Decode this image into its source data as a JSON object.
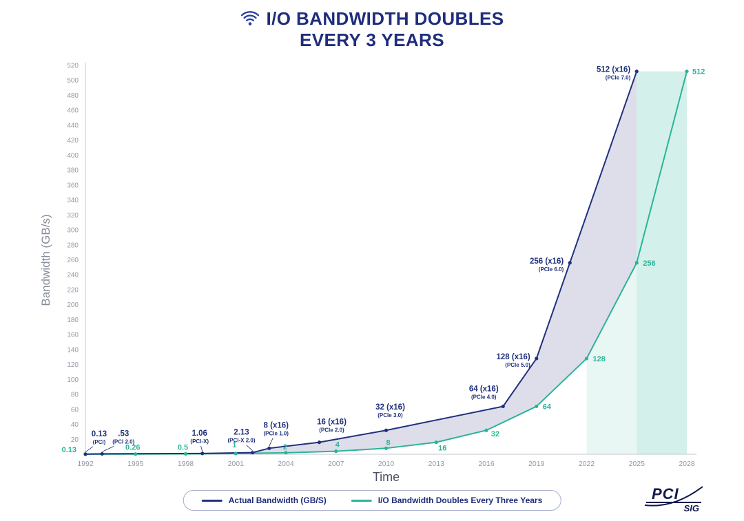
{
  "title": {
    "line1": "I/O BANDWIDTH DOUBLES",
    "line2": "EVERY 3 YEARS"
  },
  "colors": {
    "navy": "#21307C",
    "teal": "#2AB398",
    "navy_fill": "rgba(43,52,126,0.16)",
    "teal_fill": "rgba(42,179,152,0.20)",
    "teal_fill_light": "rgba(42,179,152,0.10)",
    "axis_line": "#c3c7d0",
    "tick_text": "#9399a5",
    "ylabel_color": "#868c9a",
    "xlabel_color": "#4a5068",
    "title_color": "#1f2d7b",
    "logo_color": "#12194d"
  },
  "chart_data": {
    "type": "line",
    "title": "I/O Bandwidth Doubles Every 3 Years",
    "xlabel": "Time",
    "ylabel": "Bandwidth (GB/s)",
    "xlim": [
      1992,
      2028
    ],
    "ylim": [
      0,
      520
    ],
    "x_ticks": [
      1992,
      1995,
      1998,
      2001,
      2004,
      2007,
      2010,
      2013,
      2016,
      2019,
      2022,
      2025,
      2028
    ],
    "y_ticks": [
      20,
      40,
      60,
      80,
      100,
      120,
      140,
      160,
      180,
      200,
      220,
      240,
      260,
      280,
      300,
      320,
      340,
      360,
      380,
      400,
      420,
      440,
      460,
      480,
      500,
      520
    ],
    "grid": false,
    "legend_position": "bottom",
    "series": [
      {
        "name": "Actual Bandwidth (GB/S)",
        "points": [
          {
            "year": 1992,
            "value": 0.13,
            "label": "0.13",
            "sublabel": "(PCI)"
          },
          {
            "year": 1993,
            "value": 0.53,
            "label": ".53",
            "sublabel": "(PCI 2.0)"
          },
          {
            "year": 1999,
            "value": 1.06,
            "label": "1.06",
            "sublabel": "(PCI-X)"
          },
          {
            "year": 2002,
            "value": 2.13,
            "label": "2.13",
            "sublabel": "(PCI-X 2.0)"
          },
          {
            "year": 2003,
            "value": 8,
            "label": "8 (x16)",
            "sublabel": "(PCIe 1.0)"
          },
          {
            "year": 2006,
            "value": 16,
            "label": "16 (x16)",
            "sublabel": "(PCIe 2.0)"
          },
          {
            "year": 2010,
            "value": 32,
            "label": "32 (x16)",
            "sublabel": "(PCIe 3.0)"
          },
          {
            "year": 2017,
            "value": 64,
            "label": "64 (x16)",
            "sublabel": "(PCIe 4.0)"
          },
          {
            "year": 2019,
            "value": 128,
            "label": "128 (x16)",
            "sublabel": "(PCIe 5.0)"
          },
          {
            "year": 2021,
            "value": 256,
            "label": "256 (x16)",
            "sublabel": "(PCIe 6.0)"
          },
          {
            "year": 2025,
            "value": 512,
            "label": "512 (x16)",
            "sublabel": "(PCIe 7.0)"
          }
        ]
      },
      {
        "name": "I/O Bandwidth Doubles Every Three Years",
        "points": [
          {
            "year": 1992,
            "value": 0.13,
            "label": "0.13"
          },
          {
            "year": 1995,
            "value": 0.26,
            "label": "0.26"
          },
          {
            "year": 1998,
            "value": 0.5,
            "label": "0.5"
          },
          {
            "year": 2001,
            "value": 1,
            "label": "1"
          },
          {
            "year": 2004,
            "value": 2,
            "label": "2"
          },
          {
            "year": 2007,
            "value": 4,
            "label": "4"
          },
          {
            "year": 2010,
            "value": 8,
            "label": "8"
          },
          {
            "year": 2013,
            "value": 16,
            "label": "16"
          },
          {
            "year": 2016,
            "value": 32,
            "label": "32"
          },
          {
            "year": 2019,
            "value": 64,
            "label": "64"
          },
          {
            "year": 2022,
            "value": 128,
            "label": "128"
          },
          {
            "year": 2025,
            "value": 256,
            "label": "256"
          },
          {
            "year": 2028,
            "value": 512,
            "label": "512"
          }
        ]
      }
    ]
  },
  "legend": {
    "items": [
      {
        "label": "Actual Bandwidth (GB/S)",
        "color": "#21307C"
      },
      {
        "label": "I/O Bandwidth Doubles Every Three Years",
        "color": "#2AB398"
      }
    ]
  },
  "logo": {
    "top": "PCI",
    "bottom": "SIG"
  }
}
